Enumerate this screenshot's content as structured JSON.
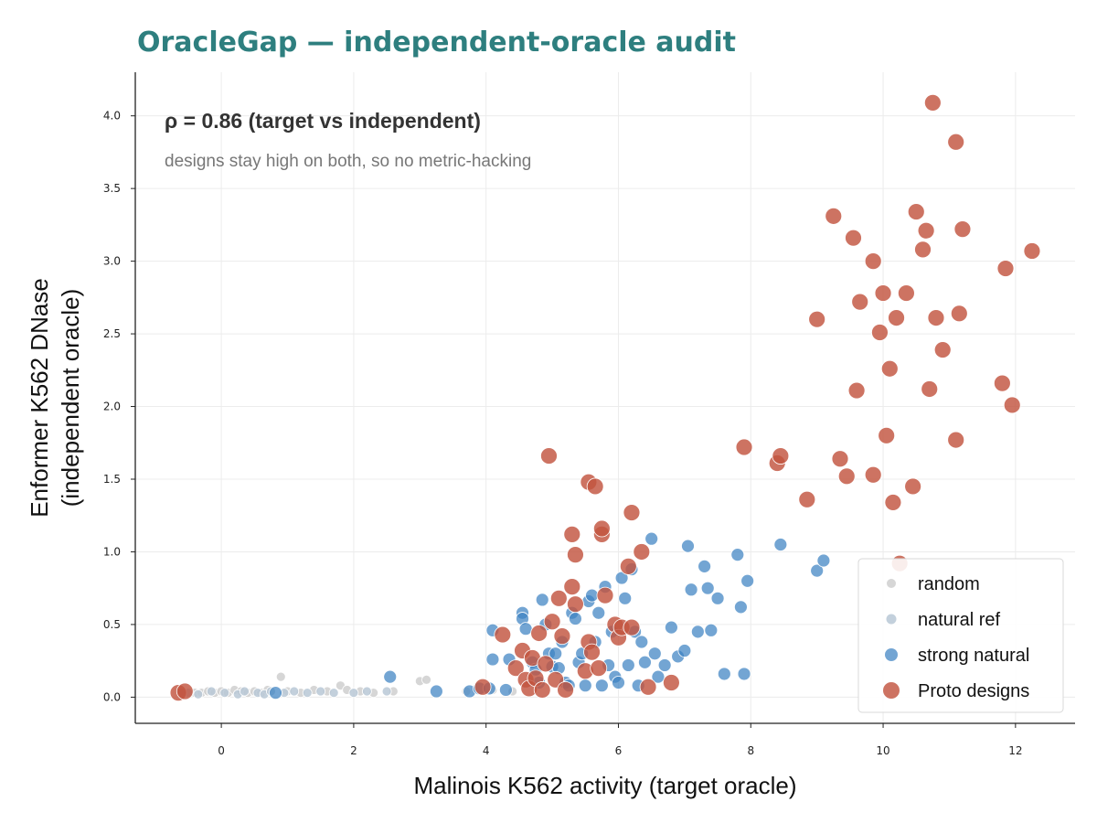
{
  "colors": {
    "title": "#2e7f7f",
    "random": "#cfcfcf",
    "natural_ref": "#b8c8d6",
    "strong_natural": "#3d82c2",
    "proto_designs": "#c2543f",
    "grid": "#ececec",
    "axis": "#222222"
  },
  "chart_data": {
    "type": "scatter",
    "title": "OracleGap — independent-oracle audit",
    "xlabel": "Malinois K562 activity  (target oracle)",
    "ylabel_line1": "Enformer K562 DNase",
    "ylabel_line2": "(independent oracle)",
    "xlim": [
      -1.3,
      12.9
    ],
    "ylim": [
      -0.18,
      4.3
    ],
    "xticks": [
      0,
      2,
      4,
      6,
      8,
      10,
      12
    ],
    "yticks": [
      0.0,
      0.5,
      1.0,
      1.5,
      2.0,
      2.5,
      3.0,
      3.5,
      4.0
    ],
    "grid": true,
    "legend_position": "bottom-right",
    "annotation": {
      "main": "ρ = 0.86  (target vs independent)",
      "sub": "designs stay high on both, so no metric-hacking"
    },
    "series": [
      {
        "name": "random",
        "color_key": "random",
        "marker_size": "small",
        "points": [
          [
            -0.6,
            0.03
          ],
          [
            -0.4,
            0.03
          ],
          [
            -0.3,
            0.03
          ],
          [
            -0.2,
            0.04
          ],
          [
            -0.1,
            0.03
          ],
          [
            0.0,
            0.04
          ],
          [
            0.1,
            0.03
          ],
          [
            0.2,
            0.05
          ],
          [
            0.3,
            0.04
          ],
          [
            0.4,
            0.03
          ],
          [
            0.5,
            0.04
          ],
          [
            0.6,
            0.03
          ],
          [
            0.7,
            0.05
          ],
          [
            0.9,
            0.14
          ],
          [
            1.0,
            0.04
          ],
          [
            1.2,
            0.03
          ],
          [
            1.4,
            0.05
          ],
          [
            1.6,
            0.04
          ],
          [
            1.8,
            0.08
          ],
          [
            1.9,
            0.05
          ],
          [
            2.1,
            0.04
          ],
          [
            2.3,
            0.03
          ],
          [
            2.6,
            0.04
          ],
          [
            3.0,
            0.11
          ],
          [
            3.1,
            0.12
          ],
          [
            3.7,
            0.04
          ],
          [
            4.1,
            0.05
          ],
          [
            4.4,
            0.04
          ]
        ]
      },
      {
        "name": "natural ref",
        "color_key": "natural_ref",
        "marker_size": "small",
        "points": [
          [
            -0.5,
            0.03
          ],
          [
            -0.35,
            0.02
          ],
          [
            -0.15,
            0.04
          ],
          [
            0.05,
            0.03
          ],
          [
            0.25,
            0.02
          ],
          [
            0.35,
            0.04
          ],
          [
            0.55,
            0.03
          ],
          [
            0.65,
            0.02
          ],
          [
            0.75,
            0.04
          ],
          [
            0.95,
            0.03
          ],
          [
            1.1,
            0.04
          ],
          [
            1.3,
            0.03
          ],
          [
            1.5,
            0.04
          ],
          [
            1.7,
            0.03
          ],
          [
            2.0,
            0.03
          ],
          [
            2.2,
            0.04
          ],
          [
            2.5,
            0.04
          ]
        ]
      },
      {
        "name": "strong natural",
        "color_key": "strong_natural",
        "marker_size": "medium",
        "points": [
          [
            0.82,
            0.03
          ],
          [
            2.55,
            0.14
          ],
          [
            3.25,
            0.04
          ],
          [
            3.75,
            0.04
          ],
          [
            3.9,
            0.06
          ],
          [
            4.05,
            0.06
          ],
          [
            4.1,
            0.26
          ],
          [
            4.1,
            0.46
          ],
          [
            4.3,
            0.05
          ],
          [
            4.35,
            0.26
          ],
          [
            4.55,
            0.58
          ],
          [
            4.55,
            0.54
          ],
          [
            4.6,
            0.47
          ],
          [
            4.7,
            0.24
          ],
          [
            4.75,
            0.19
          ],
          [
            4.8,
            0.1
          ],
          [
            4.85,
            0.67
          ],
          [
            4.9,
            0.5
          ],
          [
            4.95,
            0.3
          ],
          [
            5.0,
            0.21
          ],
          [
            5.05,
            0.3
          ],
          [
            5.1,
            0.2
          ],
          [
            5.15,
            0.38
          ],
          [
            5.2,
            0.1
          ],
          [
            5.25,
            0.08
          ],
          [
            5.3,
            0.58
          ],
          [
            5.35,
            0.54
          ],
          [
            5.4,
            0.24
          ],
          [
            5.45,
            0.3
          ],
          [
            5.5,
            0.08
          ],
          [
            5.55,
            0.66
          ],
          [
            5.6,
            0.7
          ],
          [
            5.65,
            0.38
          ],
          [
            5.7,
            0.58
          ],
          [
            5.75,
            0.08
          ],
          [
            5.8,
            0.76
          ],
          [
            5.85,
            0.22
          ],
          [
            5.9,
            0.45
          ],
          [
            5.95,
            0.14
          ],
          [
            6.0,
            0.1
          ],
          [
            6.05,
            0.82
          ],
          [
            6.1,
            0.68
          ],
          [
            6.15,
            0.22
          ],
          [
            6.2,
            0.88
          ],
          [
            6.25,
            0.45
          ],
          [
            6.3,
            0.08
          ],
          [
            6.35,
            0.38
          ],
          [
            6.4,
            0.24
          ],
          [
            6.5,
            1.09
          ],
          [
            6.55,
            0.3
          ],
          [
            6.6,
            0.14
          ],
          [
            6.7,
            0.22
          ],
          [
            6.8,
            0.48
          ],
          [
            6.9,
            0.28
          ],
          [
            7.0,
            0.32
          ],
          [
            7.05,
            1.04
          ],
          [
            7.1,
            0.74
          ],
          [
            7.2,
            0.45
          ],
          [
            7.3,
            0.9
          ],
          [
            7.35,
            0.75
          ],
          [
            7.4,
            0.46
          ],
          [
            7.5,
            0.68
          ],
          [
            7.6,
            0.16
          ],
          [
            7.8,
            0.98
          ],
          [
            7.85,
            0.62
          ],
          [
            7.9,
            0.16
          ],
          [
            7.95,
            0.8
          ],
          [
            8.45,
            1.05
          ],
          [
            9.0,
            0.87
          ],
          [
            9.1,
            0.94
          ]
        ]
      },
      {
        "name": "Proto designs",
        "color_key": "proto_designs",
        "marker_size": "large",
        "points": [
          [
            -0.65,
            0.03
          ],
          [
            -0.55,
            0.04
          ],
          [
            3.95,
            0.07
          ],
          [
            4.25,
            0.43
          ],
          [
            4.45,
            0.2
          ],
          [
            4.55,
            0.32
          ],
          [
            4.6,
            0.12
          ],
          [
            4.65,
            0.06
          ],
          [
            4.7,
            0.27
          ],
          [
            4.75,
            0.13
          ],
          [
            4.8,
            0.44
          ],
          [
            4.85,
            0.05
          ],
          [
            4.9,
            0.23
          ],
          [
            4.95,
            1.66
          ],
          [
            5.0,
            0.52
          ],
          [
            5.05,
            0.12
          ],
          [
            5.1,
            0.68
          ],
          [
            5.15,
            0.42
          ],
          [
            5.2,
            0.05
          ],
          [
            5.3,
            0.76
          ],
          [
            5.35,
            0.64
          ],
          [
            5.3,
            1.12
          ],
          [
            5.35,
            0.98
          ],
          [
            5.5,
            0.18
          ],
          [
            5.55,
            0.38
          ],
          [
            5.55,
            1.48
          ],
          [
            5.6,
            0.31
          ],
          [
            5.65,
            1.45
          ],
          [
            5.7,
            0.2
          ],
          [
            5.75,
            1.12
          ],
          [
            5.75,
            1.16
          ],
          [
            5.8,
            0.7
          ],
          [
            5.95,
            0.5
          ],
          [
            6.0,
            0.41
          ],
          [
            6.05,
            0.48
          ],
          [
            6.15,
            0.9
          ],
          [
            6.2,
            1.27
          ],
          [
            6.2,
            0.48
          ],
          [
            6.35,
            1.0
          ],
          [
            6.45,
            0.07
          ],
          [
            6.8,
            0.1
          ],
          [
            7.9,
            1.72
          ],
          [
            8.4,
            1.61
          ],
          [
            8.45,
            1.66
          ],
          [
            8.85,
            1.36
          ],
          [
            9.0,
            2.6
          ],
          [
            9.25,
            3.31
          ],
          [
            9.35,
            1.64
          ],
          [
            9.45,
            1.52
          ],
          [
            9.55,
            3.16
          ],
          [
            9.6,
            2.11
          ],
          [
            9.65,
            2.72
          ],
          [
            9.85,
            3.0
          ],
          [
            9.85,
            1.53
          ],
          [
            9.95,
            2.51
          ],
          [
            10.0,
            2.78
          ],
          [
            10.05,
            1.8
          ],
          [
            10.1,
            2.26
          ],
          [
            10.15,
            1.34
          ],
          [
            10.2,
            2.61
          ],
          [
            10.25,
            0.92
          ],
          [
            10.35,
            2.78
          ],
          [
            10.45,
            1.45
          ],
          [
            10.5,
            3.34
          ],
          [
            10.6,
            3.08
          ],
          [
            10.65,
            3.21
          ],
          [
            10.7,
            2.12
          ],
          [
            10.75,
            4.09
          ],
          [
            10.8,
            2.61
          ],
          [
            10.9,
            2.39
          ],
          [
            11.1,
            3.82
          ],
          [
            11.1,
            1.77
          ],
          [
            11.15,
            2.64
          ],
          [
            11.2,
            3.22
          ],
          [
            11.8,
            2.16
          ],
          [
            11.85,
            2.95
          ],
          [
            11.95,
            2.01
          ],
          [
            12.25,
            3.07
          ]
        ]
      }
    ]
  }
}
